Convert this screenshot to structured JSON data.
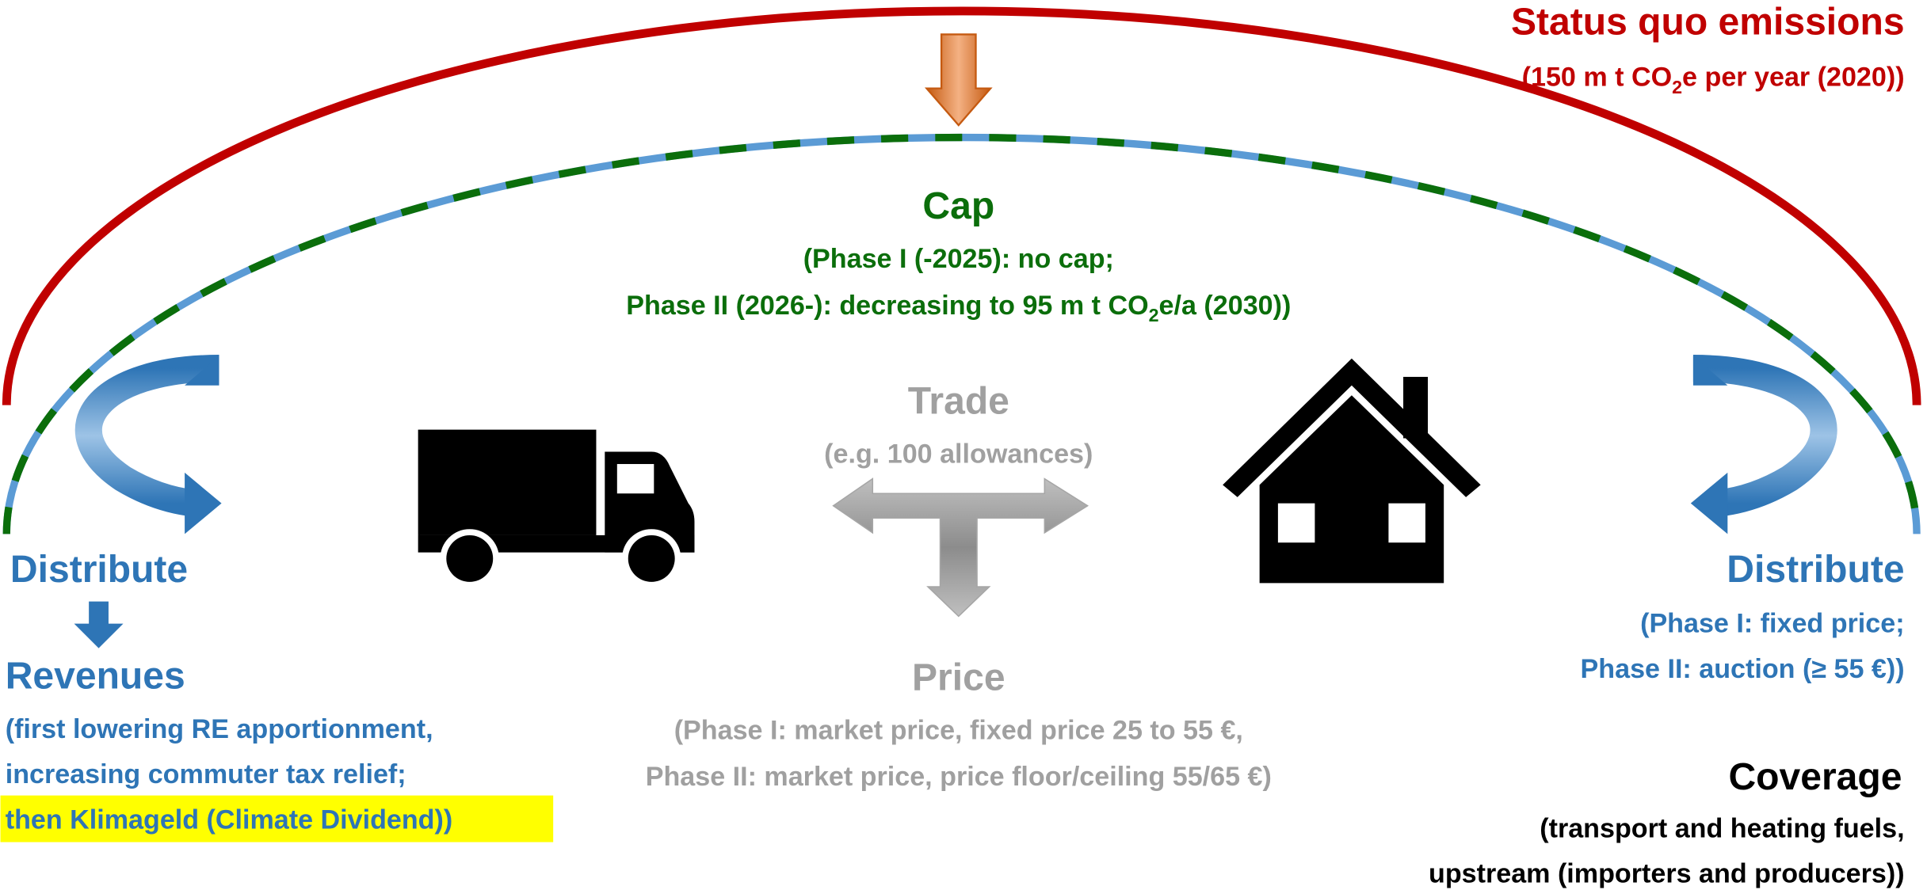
{
  "status_quo": {
    "title": "Status quo emissions",
    "detail": [
      "(150 m t CO",
      "2",
      "e per year (2020))"
    ]
  },
  "cap": {
    "title": "Cap",
    "line1": "(Phase I (-2025): no cap;",
    "line2": [
      "Phase II (2026-): decreasing to 95 m t CO",
      "2",
      "e/a (2030))"
    ]
  },
  "trade": {
    "title": "Trade",
    "detail": "(e.g. 100 allowances)"
  },
  "price": {
    "title": "Price",
    "lines": [
      "(Phase I: market price, fixed price 25 to 55 €,",
      "Phase II: market price, price floor/ceiling 55/65 €)"
    ]
  },
  "distribute_left": {
    "title": "Distribute"
  },
  "revenues": {
    "title": "Revenues",
    "lines": [
      "(first lowering RE apportionment,",
      "increasing commuter tax relief;",
      "then Klimageld (Climate Dividend))"
    ]
  },
  "distribute_right": {
    "title": "Distribute",
    "lines": [
      "(Phase I: fixed price;",
      "Phase II: auction (≥ 55 €))"
    ]
  },
  "coverage": {
    "title": "Coverage",
    "lines": [
      "(transport and heating fuels,",
      "upstream (importers and producers))"
    ]
  }
}
